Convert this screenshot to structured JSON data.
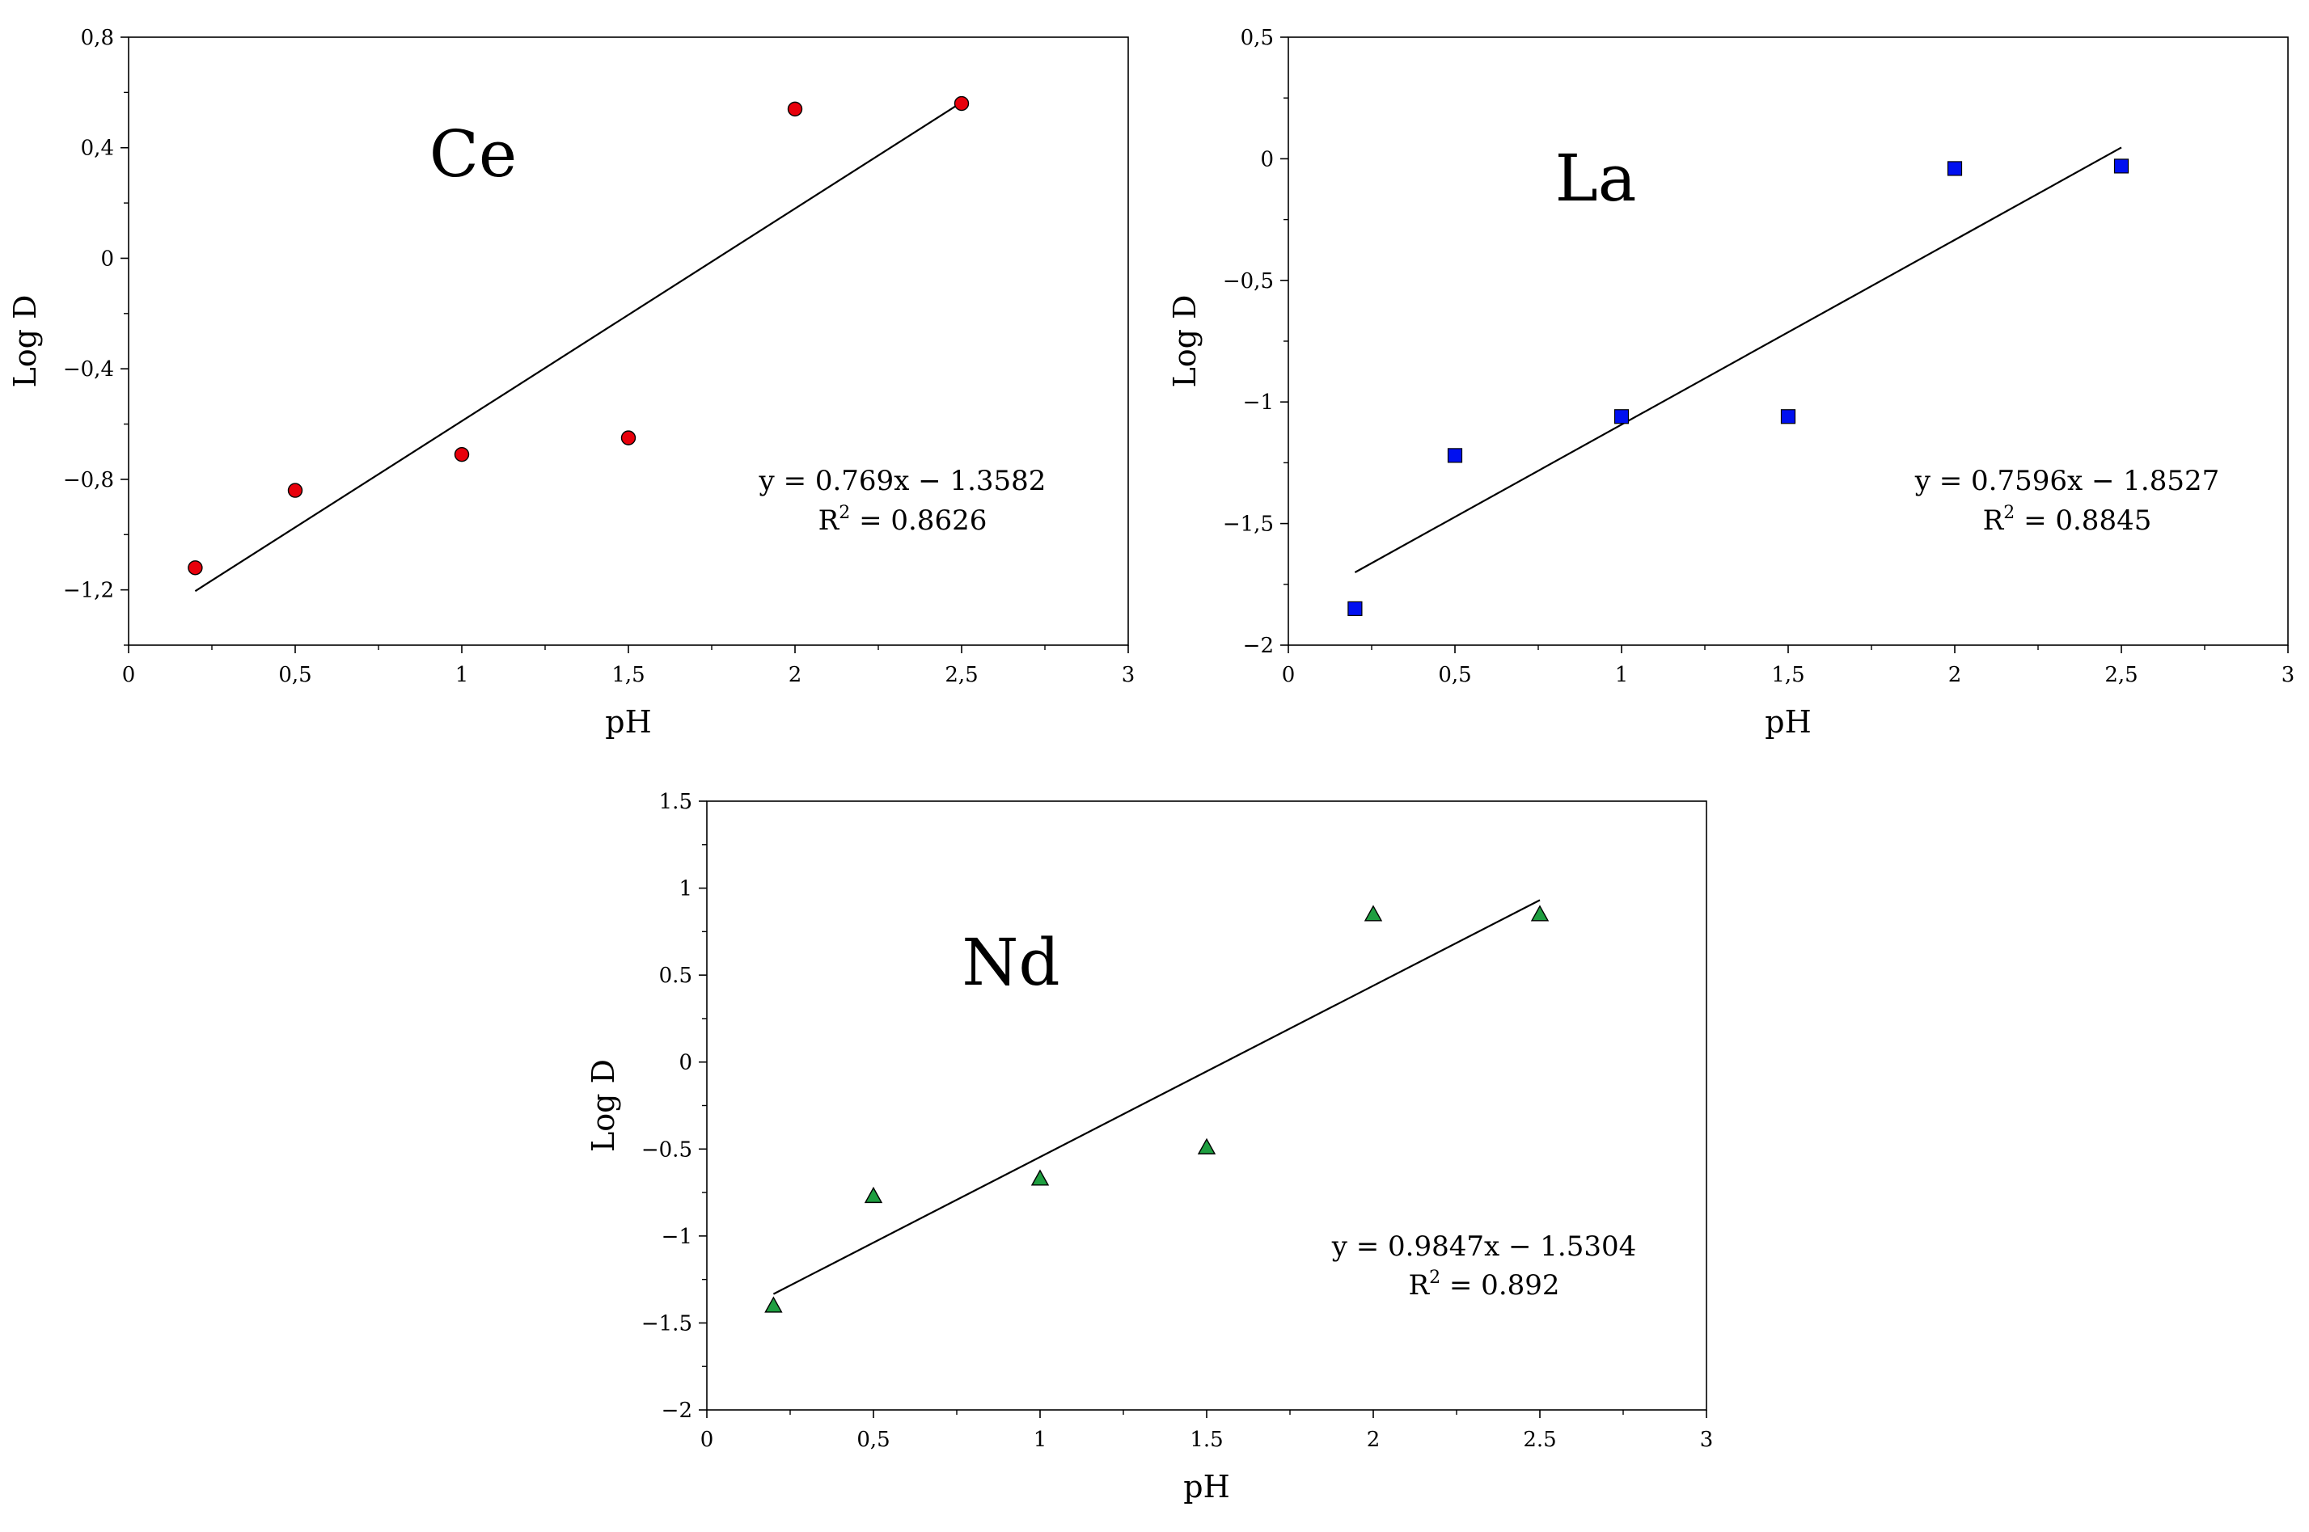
{
  "chart_data": [
    {
      "type": "scatter",
      "title": "Ce",
      "xlabel": "pH",
      "ylabel": "Log D",
      "xlim": [
        0,
        3
      ],
      "ylim": [
        -1.4,
        0.8
      ],
      "xticks": [
        0,
        0.5,
        1,
        1.5,
        2,
        2.5,
        3
      ],
      "xtick_labels": [
        "0",
        "0,5",
        "1",
        "1,5",
        "2",
        "2,5",
        "3"
      ],
      "yticks": [
        -1.2,
        -0.8,
        -0.4,
        0,
        0.4,
        0.8
      ],
      "ytick_labels": [
        "−1,2",
        "−0,8",
        "−0,4",
        "0",
        "0,4",
        "0,8"
      ],
      "marker": "circle",
      "color": "#e8000b",
      "x": [
        0.2,
        0.5,
        1,
        1.5,
        2,
        2.5
      ],
      "y": [
        -1.12,
        -0.84,
        -0.71,
        -0.65,
        0.54,
        0.56
      ],
      "trendline": {
        "slope": 0.769,
        "intercept": -1.3582,
        "x_range": [
          0.2,
          2.5
        ]
      },
      "equation": "y = 0.769x − 1.3582",
      "r2_prefix": "R",
      "r2_sup": "2",
      "r2_value": " = 0.8626",
      "grid": false
    },
    {
      "type": "scatter",
      "title": "La",
      "xlabel": "pH",
      "ylabel": "Log D",
      "xlim": [
        0,
        3
      ],
      "ylim": [
        -2,
        0.5
      ],
      "xticks": [
        0,
        0.5,
        1,
        1.5,
        2,
        2.5,
        3
      ],
      "xtick_labels": [
        "0",
        "0,5",
        "1",
        "1,5",
        "2",
        "2,5",
        "3"
      ],
      "yticks": [
        -2,
        -1.5,
        -1,
        -0.5,
        0,
        0.5
      ],
      "ytick_labels": [
        "−2",
        "−1,5",
        "−1",
        "−0,5",
        "0",
        "0,5"
      ],
      "marker": "square",
      "color": "#0010f0",
      "x": [
        0.2,
        0.5,
        1,
        1.5,
        2,
        2.5
      ],
      "y": [
        -1.85,
        -1.22,
        -1.06,
        -1.06,
        -0.04,
        -0.03
      ],
      "trendline": {
        "slope": 0.7596,
        "intercept": -1.8527,
        "x_range": [
          0.2,
          2.5
        ]
      },
      "equation": "y = 0.7596x − 1.8527",
      "r2_prefix": "R",
      "r2_sup": "2",
      "r2_value": " = 0.8845",
      "grid": false
    },
    {
      "type": "scatter",
      "title": "Nd",
      "xlabel": "pH",
      "ylabel": "Log D",
      "xlim": [
        0,
        3
      ],
      "ylim": [
        -2,
        1.5
      ],
      "xticks": [
        0,
        0.5,
        1,
        1.5,
        2,
        2.5,
        3
      ],
      "xtick_labels": [
        "0",
        "0,5",
        "1",
        "1.5",
        "2",
        "2.5",
        "3"
      ],
      "yticks": [
        -2,
        -1.5,
        -1,
        -0.5,
        0,
        0.5,
        1,
        1.5
      ],
      "ytick_labels": [
        "−2",
        "−1.5",
        "−1",
        "−0.5",
        "0",
        "0.5",
        "1",
        "1.5"
      ],
      "marker": "triangle",
      "color": "#1e9e40",
      "x": [
        0.2,
        0.5,
        1,
        1.5,
        2,
        2.5
      ],
      "y": [
        -1.4,
        -0.77,
        -0.67,
        -0.49,
        0.85,
        0.85
      ],
      "trendline": {
        "slope": 0.9847,
        "intercept": -1.5304,
        "x_range": [
          0.2,
          2.5
        ]
      },
      "equation": "y = 0.9847x − 1.5304",
      "r2_prefix": "R",
      "r2_sup": "2",
      "r2_value": " = 0.892",
      "grid": false
    }
  ]
}
